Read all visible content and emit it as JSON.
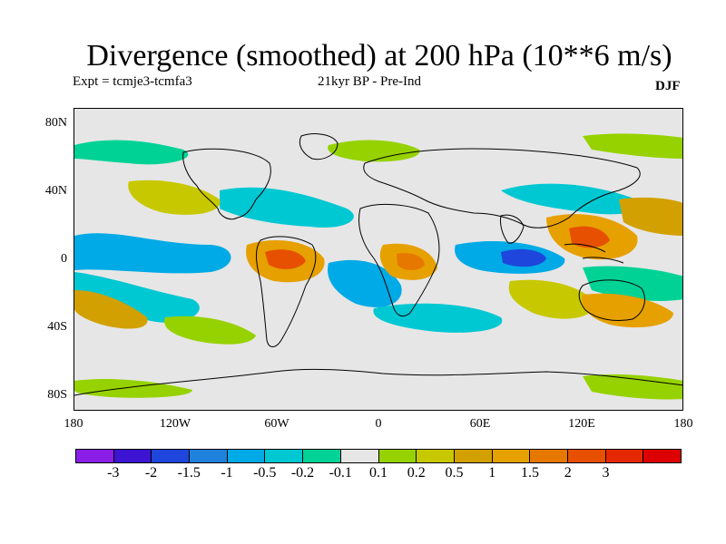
{
  "title": "Divergence (smoothed) at 200 hPa (10**6 m/s)",
  "experiment": "Expt = tcmje3-tcmfa3",
  "period": "21kyr BP - Pre-Ind",
  "season": "DJF",
  "map": {
    "projection": "cylindrical-equidistant",
    "lon_range": [
      -180,
      180
    ],
    "lat_range": [
      -90,
      90
    ],
    "land_outline_color": "#000000",
    "missing_color": "#e6e6e6"
  },
  "yaxis_ticks": [
    "80N",
    "40N",
    "0",
    "40S",
    "80S"
  ],
  "xaxis_ticks": [
    "180",
    "120W",
    "60W",
    "0",
    "60E",
    "120E",
    "180"
  ],
  "colorbar": {
    "colors": [
      "#8a1ee6",
      "#3c14d2",
      "#1e46dc",
      "#1e82dc",
      "#00aae6",
      "#00c8d2",
      "#00d296",
      "#e6e6e6",
      "#96d200",
      "#c8c800",
      "#d2a000",
      "#e6a000",
      "#e67800",
      "#e65000",
      "#e62800",
      "#dc0000"
    ],
    "labels": [
      "-3",
      "-2",
      "-1.5",
      "-1",
      "-0.5",
      "-0.2",
      "-0.1",
      "0.1",
      "0.2",
      "0.5",
      "1",
      "1.5",
      "2",
      "3"
    ]
  }
}
